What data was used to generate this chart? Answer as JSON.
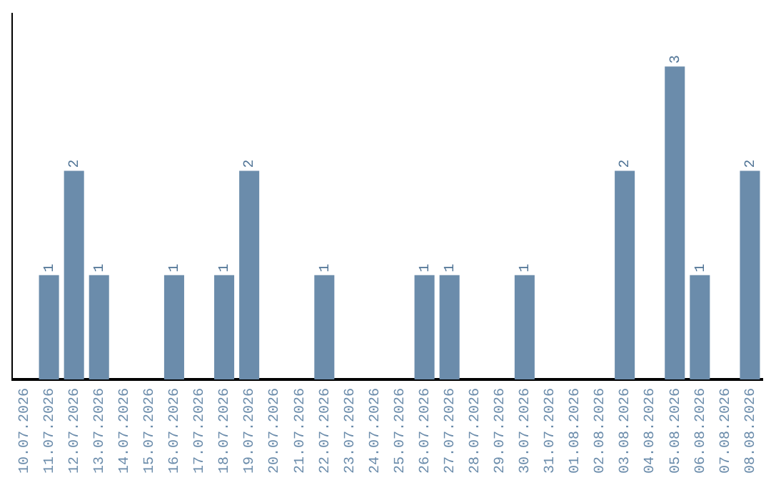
{
  "chart_data": {
    "type": "bar",
    "categories": [
      "10.07.2026",
      "11.07.2026",
      "12.07.2026",
      "13.07.2026",
      "14.07.2026",
      "15.07.2026",
      "16.07.2026",
      "17.07.2026",
      "18.07.2026",
      "19.07.2026",
      "20.07.2026",
      "21.07.2026",
      "22.07.2026",
      "23.07.2026",
      "24.07.2026",
      "25.07.2026",
      "26.07.2026",
      "27.07.2026",
      "28.07.2026",
      "29.07.2026",
      "30.07.2026",
      "31.07.2026",
      "01.08.2026",
      "02.08.2026",
      "03.08.2026",
      "04.08.2026",
      "05.08.2026",
      "06.08.2026",
      "07.08.2026",
      "08.08.2026"
    ],
    "values": [
      0,
      1,
      2,
      1,
      0,
      0,
      1,
      0,
      1,
      2,
      0,
      0,
      1,
      0,
      0,
      0,
      1,
      1,
      0,
      0,
      1,
      0,
      0,
      0,
      2,
      0,
      3,
      1,
      0,
      2
    ],
    "value_labels": [
      null,
      "1",
      "2",
      "1",
      null,
      null,
      "1",
      null,
      "1",
      "2",
      null,
      null,
      "1",
      null,
      null,
      null,
      "1",
      "1",
      null,
      null,
      "1",
      null,
      null,
      null,
      "2",
      null,
      "3",
      "1",
      null,
      "2"
    ],
    "color": "#6b8cab",
    "grid": false,
    "legend": false,
    "tick_labels": "x"
  }
}
